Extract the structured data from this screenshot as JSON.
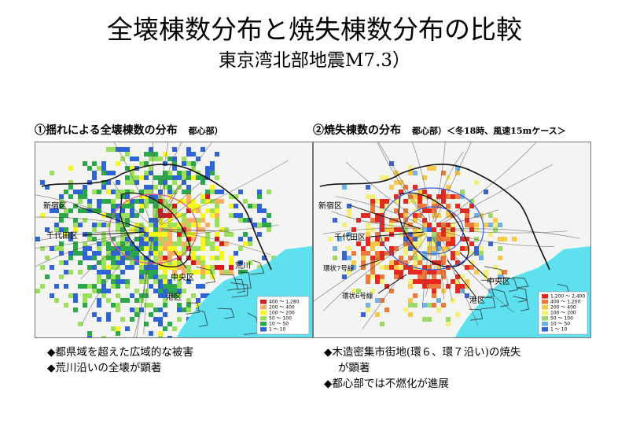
{
  "title": "全壊棟数分布と焼失棟数分布の比較",
  "subtitle": "東京湾北部地震M7.3）",
  "panels": [
    {
      "number": "①",
      "heading": "揺れによる全壊棟数の分布",
      "note": "都心部）",
      "place_labels": [
        "新宿区",
        "千代田区",
        "中央区",
        "港区",
        "荒川"
      ],
      "legend": [
        "400 ～ 1,280",
        "200 ～ 400",
        "100 ～ 200",
        "50 ～ 100",
        "10 ～ 50",
        "1 ～ 10"
      ],
      "legend_colors": [
        "#d7191c",
        "#fdae61",
        "#f7f71e",
        "#9be05a",
        "#2aa84a",
        "#2f63d8"
      ],
      "bullets": [
        "◆都県域を超えた広域的な被害",
        "◆荒川沿いの全壊が顕著"
      ]
    },
    {
      "number": "②",
      "heading": "焼失棟数の分布",
      "note": "都心部）＜冬18時、風速15mケース＞",
      "place_labels": [
        "新宿区",
        "千代田区",
        "環状7号線",
        "中央区",
        "環状6号線",
        "港区"
      ],
      "legend": [
        "1,200 ～ 2,400",
        "400 ～ 1,200",
        "200 ～ 400",
        "100 ～ 200",
        "50 ～ 100",
        "10 ～ 50",
        "1 ～ 10"
      ],
      "legend_colors": [
        "#e8281e",
        "#f07a3c",
        "#f7c74a",
        "#f5f07a",
        "#9bd96a",
        "#6fb2e6",
        "#3a62d0"
      ],
      "bullets": [
        "◆木造密集市街地(環６、環７沿い)の焼失",
        "が顕著",
        "◆都心部では不燃化が進展"
      ]
    }
  ],
  "colors": {
    "sea": "#5ee0ef",
    "land": "#f4f4f2",
    "outline": "#111111"
  }
}
